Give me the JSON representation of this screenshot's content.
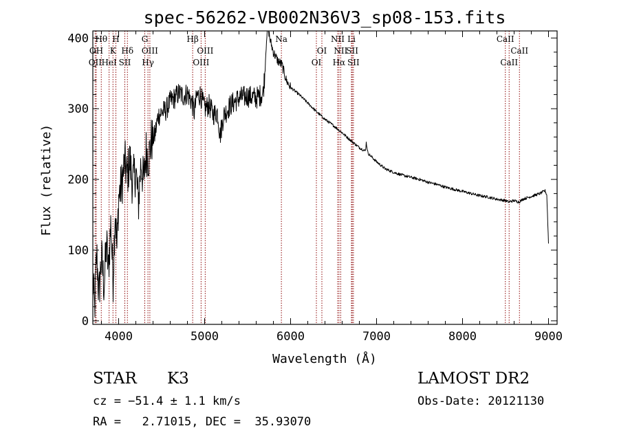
{
  "title": "spec-56262-VB002N36V3_sp08-153.fits",
  "info": {
    "object_class": "STAR",
    "subclass": "K3",
    "survey": "LAMOST DR2",
    "cz_line": "cz = −51.4 ± 1.1 km/s",
    "obs_date": "Obs-Date: 20121130",
    "radec_line": "RA =   2.71015, DEC =  35.93070"
  },
  "chart_data": {
    "type": "line",
    "title": "spec-56262-VB002N36V3_sp08-153.fits",
    "xlabel": "Wavelength (Å)",
    "ylabel": "Flux (relative)",
    "xlim": [
      3700,
      9100
    ],
    "ylim": [
      -5,
      410
    ],
    "xticks": [
      4000,
      5000,
      6000,
      7000,
      8000,
      9000
    ],
    "yticks": [
      0,
      100,
      200,
      300,
      400
    ],
    "grid": false,
    "series": [
      {
        "color": "#000000",
        "anchors": [
          [
            3700,
            60
          ],
          [
            3720,
            15
          ],
          [
            3745,
            95
          ],
          [
            3770,
            35
          ],
          [
            3800,
            90
          ],
          [
            3830,
            50
          ],
          [
            3860,
            110
          ],
          [
            3880,
            70
          ],
          [
            3910,
            140
          ],
          [
            3935,
            55
          ],
          [
            3960,
            160
          ],
          [
            3980,
            100
          ],
          [
            4000,
            175
          ],
          [
            4040,
            195
          ],
          [
            4070,
            225
          ],
          [
            4100,
            205
          ],
          [
            4130,
            228
          ],
          [
            4160,
            195
          ],
          [
            4200,
            212
          ],
          [
            4230,
            165
          ],
          [
            4260,
            225
          ],
          [
            4290,
            195
          ],
          [
            4320,
            240
          ],
          [
            4350,
            230
          ],
          [
            4380,
            255
          ],
          [
            4420,
            262
          ],
          [
            4460,
            290
          ],
          [
            4500,
            295
          ],
          [
            4550,
            298
          ],
          [
            4600,
            310
          ],
          [
            4650,
            315
          ],
          [
            4700,
            322
          ],
          [
            4760,
            318
          ],
          [
            4800,
            322
          ],
          [
            4850,
            310
          ],
          [
            4880,
            295
          ],
          [
            4910,
            318
          ],
          [
            4950,
            320
          ],
          [
            5000,
            300
          ],
          [
            5050,
            305
          ],
          [
            5100,
            292
          ],
          [
            5150,
            295
          ],
          [
            5180,
            262
          ],
          [
            5220,
            290
          ],
          [
            5300,
            305
          ],
          [
            5400,
            315
          ],
          [
            5500,
            318
          ],
          [
            5600,
            315
          ],
          [
            5680,
            322
          ],
          [
            5700,
            350
          ],
          [
            5720,
            400
          ],
          [
            5740,
            415
          ],
          [
            5760,
            398
          ],
          [
            5800,
            380
          ],
          [
            5850,
            368
          ],
          [
            5900,
            362
          ],
          [
            5950,
            340
          ],
          [
            6000,
            330
          ],
          [
            6100,
            320
          ],
          [
            6200,
            308
          ],
          [
            6300,
            296
          ],
          [
            6400,
            285
          ],
          [
            6500,
            276
          ],
          [
            6560,
            270
          ],
          [
            6600,
            266
          ],
          [
            6700,
            255
          ],
          [
            6800,
            245
          ],
          [
            6870,
            240
          ],
          [
            6880,
            252
          ],
          [
            6900,
            237
          ],
          [
            7000,
            225
          ],
          [
            7100,
            215
          ],
          [
            7200,
            210
          ],
          [
            7300,
            206
          ],
          [
            7400,
            203
          ],
          [
            7500,
            200
          ],
          [
            7600,
            196
          ],
          [
            7700,
            193
          ],
          [
            7800,
            189
          ],
          [
            7900,
            186
          ],
          [
            8000,
            183
          ],
          [
            8100,
            180
          ],
          [
            8200,
            177
          ],
          [
            8300,
            175
          ],
          [
            8400,
            172
          ],
          [
            8500,
            170
          ],
          [
            8540,
            168
          ],
          [
            8560,
            169
          ],
          [
            8600,
            170
          ],
          [
            8660,
            168
          ],
          [
            8700,
            172
          ],
          [
            8800,
            176
          ],
          [
            8900,
            180
          ],
          [
            8960,
            184
          ],
          [
            8980,
            178
          ],
          [
            9000,
            110
          ]
        ],
        "noise": [
          {
            "from": 3700,
            "to": 4400,
            "amp": 34
          },
          {
            "from": 4400,
            "to": 5700,
            "amp": 16
          },
          {
            "from": 5700,
            "to": 6000,
            "amp": 7
          },
          {
            "from": 6000,
            "to": 9000,
            "amp": 2
          }
        ]
      }
    ],
    "spectral_lines": [
      {
        "label": "Hθ",
        "wavelength": 3798,
        "row": 0
      },
      {
        "label": "OII",
        "wavelength": 3727,
        "row": 2
      },
      {
        "label": "OH",
        "wavelength": 3740,
        "row": 1
      },
      {
        "label": "H",
        "wavelength": 3968,
        "row": 0
      },
      {
        "label": "K",
        "wavelength": 3934,
        "row": 1
      },
      {
        "label": "HeI",
        "wavelength": 3889,
        "row": 2
      },
      {
        "label": "Hδ",
        "wavelength": 4102,
        "row": 1
      },
      {
        "label": "SII",
        "wavelength": 4072,
        "row": 2
      },
      {
        "label": "G",
        "wavelength": 4304,
        "row": 0
      },
      {
        "label": "OIII",
        "wavelength": 4363,
        "row": 1
      },
      {
        "label": "Hγ",
        "wavelength": 4341,
        "row": 2
      },
      {
        "label": "Hβ",
        "wavelength": 4861,
        "row": 0
      },
      {
        "label": "OIII",
        "wavelength": 5007,
        "row": 1
      },
      {
        "label": "OIII",
        "wavelength": 4959,
        "row": 2
      },
      {
        "label": "Na",
        "wavelength": 5893,
        "row": 0
      },
      {
        "label": "OI",
        "wavelength": 6364,
        "row": 1
      },
      {
        "label": "OI",
        "wavelength": 6300,
        "row": 2
      },
      {
        "label": "NII",
        "wavelength": 6548,
        "row": 0
      },
      {
        "label": "NII",
        "wavelength": 6583,
        "row": 1
      },
      {
        "label": "Hα",
        "wavelength": 6563,
        "row": 2
      },
      {
        "label": "Li",
        "wavelength": 6708,
        "row": 0
      },
      {
        "label": "SII",
        "wavelength": 6717,
        "row": 1
      },
      {
        "label": "SII",
        "wavelength": 6731,
        "row": 2
      },
      {
        "label": "CaII",
        "wavelength": 8498,
        "row": 0
      },
      {
        "label": "CaII",
        "wavelength": 8662,
        "row": 1
      },
      {
        "label": "CaII",
        "wavelength": 8542,
        "row": 2
      }
    ],
    "line_color": "#8b0000"
  }
}
